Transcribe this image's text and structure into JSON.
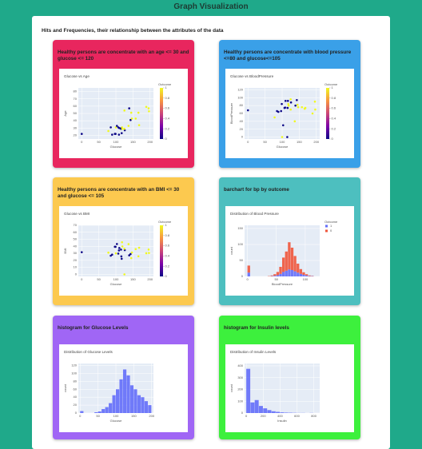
{
  "header": {
    "title": "Graph Visualization"
  },
  "section_title": "Hits and Frequencies, their relationship between the attributes of the data",
  "cards": [
    {
      "title": "Healthy persons are concentrate with an age <= 30 and glucose <= 120"
    },
    {
      "title": "Healthy persons are concentrate with blood pressure <=80 and glucose<=105"
    },
    {
      "title": "Healthy persons are concentrate with an BMI <= 30 and glucose <= 105"
    },
    {
      "title": "barchart for bp by outcome"
    },
    {
      "title": "histogram for Glucose Levels"
    },
    {
      "title": "histogram for Insulin levels"
    }
  ],
  "chart_data": [
    {
      "type": "scatter",
      "title": "Glucose vs Age",
      "xlabel": "Glucose",
      "ylabel": "Age",
      "colorbar_title": "Outcome",
      "colorscale": [
        "#0d0887",
        "#7e03a8",
        "#cc4778",
        "#f89540",
        "#f0f921"
      ],
      "clim": [
        0,
        1
      ],
      "cticks": [
        0,
        0.2,
        0.4,
        0.6,
        0.8,
        1
      ],
      "xlim": [
        -10,
        210
      ],
      "xticks": [
        0,
        50,
        100,
        150,
        200
      ],
      "ylim": [
        15,
        85
      ],
      "yticks": [
        20,
        30,
        40,
        50,
        60,
        70,
        80
      ],
      "x": [
        85,
        89,
        137,
        116,
        78,
        115,
        197,
        125,
        110,
        168,
        139,
        189,
        166,
        100,
        118,
        107,
        103,
        126,
        99,
        196,
        119,
        143,
        125,
        147,
        97,
        145,
        117,
        109,
        158,
        0
      ],
      "y": [
        31,
        21,
        33,
        30,
        26,
        29,
        53,
        54,
        30,
        34,
        57,
        59,
        51,
        31,
        31,
        31,
        33,
        27,
        22,
        57,
        29,
        41,
        29,
        43,
        22,
        51,
        23,
        21,
        43,
        22
      ],
      "outcome": [
        0,
        0,
        1,
        0,
        1,
        0,
        1,
        1,
        0,
        1,
        0,
        1,
        1,
        1,
        1,
        0,
        0,
        0,
        0,
        1,
        1,
        0,
        1,
        1,
        0,
        1,
        0,
        0,
        1,
        0
      ]
    },
    {
      "type": "scatter",
      "title": "Glucose vs BloodPressure",
      "xlabel": "Glucose",
      "ylabel": "BloodPressure",
      "colorbar_title": "Outcome",
      "colorscale": [
        "#0d0887",
        "#7e03a8",
        "#cc4778",
        "#f89540",
        "#f0f921"
      ],
      "clim": [
        0,
        1
      ],
      "cticks": [
        0,
        0.2,
        0.4,
        0.6,
        0.8,
        1
      ],
      "xlim": [
        -10,
        210
      ],
      "xticks": [
        0,
        50,
        100,
        150,
        200
      ],
      "ylim": [
        -5,
        125
      ],
      "yticks": [
        0,
        20,
        40,
        60,
        80,
        100,
        120
      ],
      "x": [
        85,
        89,
        137,
        116,
        78,
        115,
        197,
        125,
        110,
        168,
        139,
        189,
        166,
        100,
        118,
        107,
        103,
        126,
        99,
        196,
        119,
        143,
        125,
        147,
        97,
        145,
        117,
        109,
        158,
        0
      ],
      "y": [
        66,
        64,
        40,
        74,
        50,
        0,
        70,
        96,
        92,
        74,
        80,
        60,
        72,
        0,
        84,
        74,
        30,
        88,
        84,
        90,
        80,
        94,
        70,
        76,
        66,
        82,
        92,
        75,
        76,
        68
      ],
      "outcome": [
        0,
        0,
        1,
        0,
        1,
        0,
        1,
        1,
        0,
        1,
        0,
        1,
        1,
        1,
        1,
        0,
        0,
        0,
        0,
        1,
        1,
        0,
        1,
        1,
        0,
        1,
        0,
        0,
        1,
        0
      ]
    },
    {
      "type": "scatter",
      "title": "Glucose vs BMI",
      "xlabel": "Glucose",
      "ylabel": "BMI",
      "colorbar_title": "Outcome",
      "colorscale": [
        "#0d0887",
        "#7e03a8",
        "#cc4778",
        "#f89540",
        "#f0f921"
      ],
      "clim": [
        0,
        1
      ],
      "cticks": [
        0,
        0.2,
        0.4,
        0.6,
        0.8,
        1
      ],
      "xlim": [
        -10,
        210
      ],
      "xticks": [
        0,
        50,
        100,
        150,
        200
      ],
      "ylim": [
        -3,
        70
      ],
      "yticks": [
        0,
        10,
        20,
        30,
        40,
        50,
        60,
        70
      ],
      "x": [
        85,
        89,
        137,
        116,
        78,
        115,
        197,
        125,
        110,
        168,
        139,
        189,
        166,
        100,
        118,
        107,
        103,
        126,
        99,
        196,
        119,
        143,
        125,
        147,
        97,
        145,
        117,
        109,
        158,
        0
      ],
      "y": [
        26.6,
        28.1,
        43.1,
        25.6,
        31,
        35.3,
        30.5,
        0,
        37.6,
        38,
        27.1,
        30.1,
        25.8,
        30,
        45.8,
        29.6,
        43.3,
        34.6,
        39.3,
        35.4,
        39.8,
        29,
        36.6,
        31.1,
        39.4,
        23.2,
        22.2,
        34.1,
        36,
        31.6
      ],
      "outcome": [
        0,
        0,
        1,
        0,
        1,
        0,
        1,
        1,
        0,
        1,
        0,
        1,
        1,
        1,
        1,
        0,
        0,
        0,
        0,
        1,
        1,
        0,
        1,
        1,
        0,
        1,
        0,
        0,
        1,
        0
      ]
    },
    {
      "type": "histogram",
      "title": "Distribution of Blood Pressure",
      "xlabel": "BloodPressure",
      "ylabel": "count",
      "legend_title": "Outcome",
      "stacked": true,
      "xlim": [
        -5,
        125
      ],
      "xticks": [
        0,
        50,
        100
      ],
      "ylim": [
        0,
        160
      ],
      "yticks": [
        0,
        50,
        100,
        150
      ],
      "bins": [
        0,
        5,
        10,
        15,
        20,
        25,
        30,
        35,
        40,
        45,
        50,
        55,
        60,
        65,
        70,
        75,
        80,
        85,
        90,
        95,
        100,
        105,
        110,
        115,
        120,
        125
      ],
      "series": [
        {
          "name": "1",
          "color": "#636efa",
          "values": [
            12,
            0,
            0,
            0,
            0,
            0,
            0,
            0,
            1,
            2,
            4,
            8,
            14,
            18,
            22,
            20,
            16,
            12,
            8,
            5,
            3,
            1,
            1,
            0,
            0
          ]
        },
        {
          "name": "0",
          "color": "#ef553b",
          "values": [
            22,
            0,
            0,
            0,
            0,
            0,
            0,
            1,
            2,
            5,
            10,
            22,
            45,
            60,
            85,
            70,
            48,
            28,
            15,
            8,
            4,
            2,
            1,
            0,
            0
          ]
        }
      ]
    },
    {
      "type": "histogram",
      "title": "Distribution of Glucose Levels",
      "xlabel": "Glucose",
      "ylabel": "count",
      "color": "#636efa",
      "xlim": [
        -5,
        205
      ],
      "xticks": [
        0,
        50,
        100,
        150,
        200
      ],
      "ylim": [
        0,
        125
      ],
      "yticks": [
        0,
        20,
        40,
        60,
        80,
        100,
        120
      ],
      "bins": [
        0,
        10,
        20,
        30,
        40,
        50,
        60,
        70,
        80,
        90,
        100,
        110,
        120,
        130,
        140,
        150,
        160,
        170,
        180,
        190,
        200
      ],
      "values": [
        5,
        0,
        0,
        0,
        2,
        4,
        10,
        15,
        25,
        45,
        60,
        85,
        110,
        95,
        70,
        60,
        45,
        40,
        30,
        20
      ]
    },
    {
      "type": "histogram",
      "title": "Distribution of Insulin Levels",
      "xlabel": "Insulin",
      "ylabel": "count",
      "color": "#636efa",
      "xlim": [
        -20,
        870
      ],
      "xticks": [
        0,
        200,
        400,
        600,
        800
      ],
      "ylim": [
        0,
        420
      ],
      "yticks": [
        0,
        100,
        200,
        300,
        400
      ],
      "bins": [
        0,
        50,
        100,
        150,
        200,
        250,
        300,
        350,
        400,
        450,
        500,
        550,
        600,
        650,
        700,
        750,
        800,
        850
      ],
      "values": [
        375,
        90,
        110,
        60,
        40,
        25,
        15,
        10,
        6,
        4,
        3,
        2,
        1,
        1,
        0,
        1,
        0
      ]
    }
  ]
}
